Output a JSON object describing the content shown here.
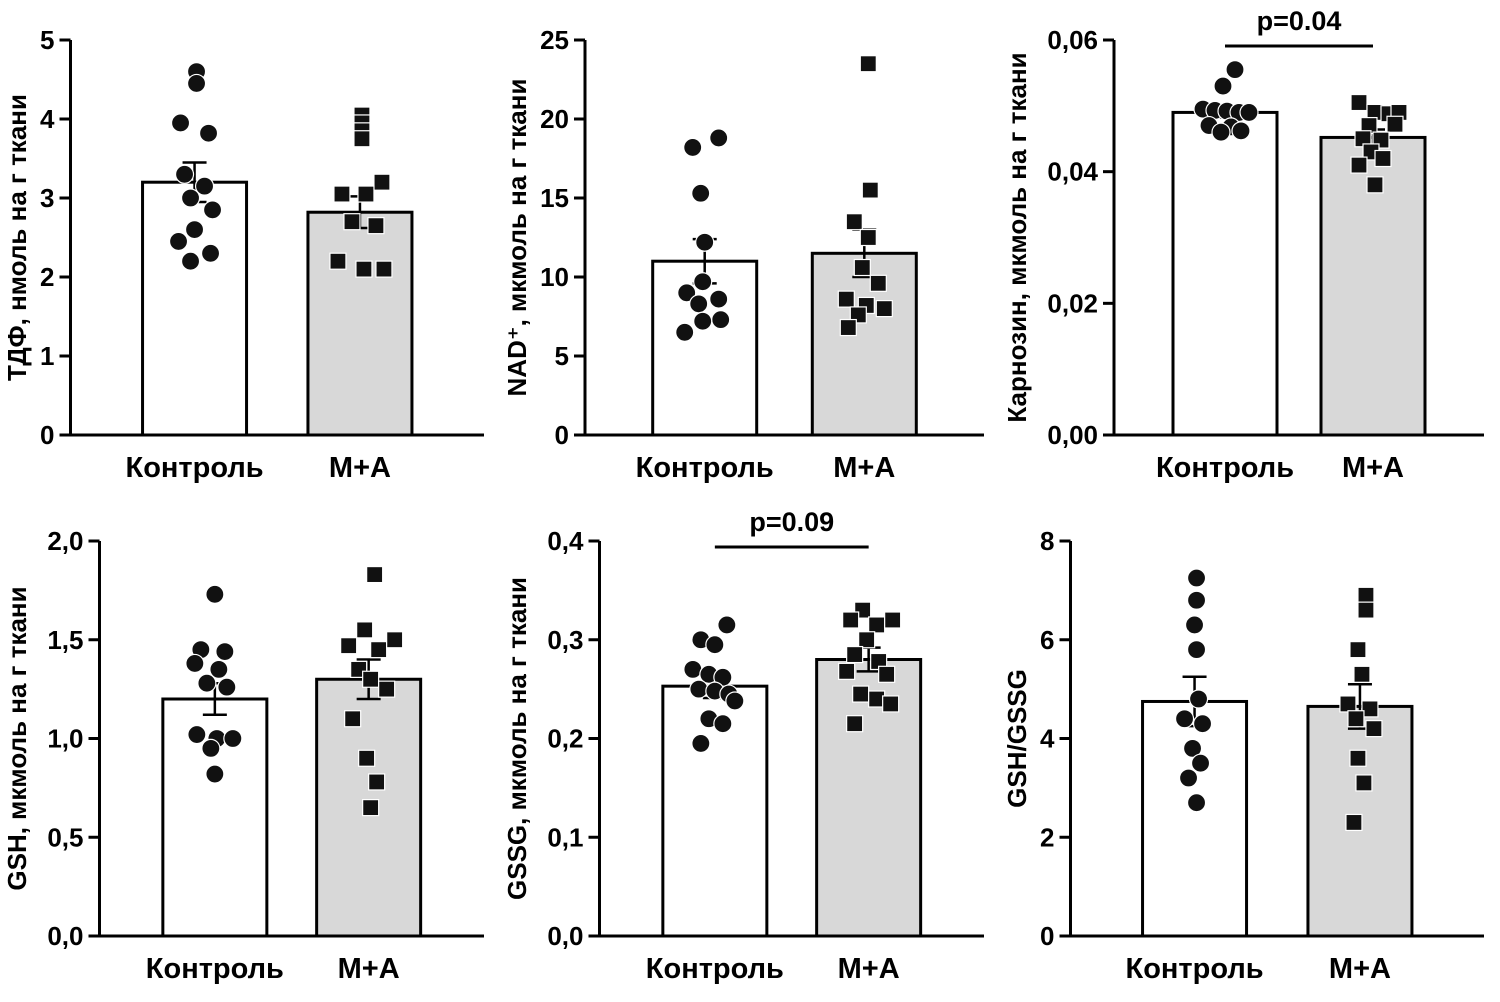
{
  "figure": {
    "background": "#ffffff",
    "axis_color": "#000000",
    "point_color": "#111111",
    "groups": [
      "Контроль",
      "М+А"
    ],
    "bar_colors": [
      "#ffffff",
      "#d8d8d8"
    ]
  },
  "chart_data": [
    {
      "type": "bar",
      "title": "",
      "xlabel": "",
      "ylabel": "ТДФ, нмоль на г ткани",
      "categories": [
        "Контроль",
        "М+А"
      ],
      "ylim": [
        0,
        5
      ],
      "yticks": [
        0,
        1,
        2,
        3,
        4,
        5
      ],
      "ytick_labels": [
        "0",
        "1",
        "2",
        "3",
        "4",
        "5"
      ],
      "annotation": null,
      "series": [
        {
          "name": "Контроль",
          "marker": "circle",
          "bar_color": "#ffffff",
          "mean": 3.2,
          "sem": 0.25,
          "points": [
            [
              2,
              4.6
            ],
            [
              2,
              4.45
            ],
            [
              -14,
              3.95
            ],
            [
              14,
              3.82
            ],
            [
              -10,
              3.3
            ],
            [
              10,
              3.15
            ],
            [
              -4,
              3.0
            ],
            [
              18,
              2.85
            ],
            [
              0,
              2.6
            ],
            [
              -16,
              2.45
            ],
            [
              16,
              2.3
            ],
            [
              -4,
              2.2
            ]
          ]
        },
        {
          "name": "М+А",
          "marker": "square",
          "bar_color": "#d8d8d8",
          "mean": 2.82,
          "sem": 0.2,
          "points": [
            [
              2,
              4.05
            ],
            [
              2,
              3.95
            ],
            [
              2,
              3.85
            ],
            [
              2,
              3.75
            ],
            [
              22,
              3.2
            ],
            [
              -18,
              3.05
            ],
            [
              6,
              3.05
            ],
            [
              -8,
              2.7
            ],
            [
              16,
              2.65
            ],
            [
              -22,
              2.2
            ],
            [
              4,
              2.1
            ],
            [
              24,
              2.1
            ]
          ]
        }
      ]
    },
    {
      "type": "bar",
      "title": "",
      "xlabel": "",
      "ylabel": "NAD⁺, мкмоль на г ткани",
      "categories": [
        "Контроль",
        "М+А"
      ],
      "ylim": [
        0,
        25
      ],
      "yticks": [
        0,
        5,
        10,
        15,
        20,
        25
      ],
      "ytick_labels": [
        "0",
        "5",
        "10",
        "15",
        "20",
        "25"
      ],
      "annotation": null,
      "series": [
        {
          "name": "Контроль",
          "marker": "circle",
          "bar_color": "#ffffff",
          "mean": 11.0,
          "sem": 1.4,
          "points": [
            [
              14,
              18.8
            ],
            [
              -12,
              18.2
            ],
            [
              -4,
              15.3
            ],
            [
              0,
              12.2
            ],
            [
              -2,
              9.7
            ],
            [
              -18,
              9.0
            ],
            [
              14,
              8.6
            ],
            [
              -6,
              8.3
            ],
            [
              16,
              7.3
            ],
            [
              -2,
              7.2
            ],
            [
              -20,
              6.5
            ]
          ]
        },
        {
          "name": "М+А",
          "marker": "square",
          "bar_color": "#d8d8d8",
          "mean": 11.5,
          "sem": 1.5,
          "points": [
            [
              4,
              23.5
            ],
            [
              6,
              15.5
            ],
            [
              -10,
              13.5
            ],
            [
              4,
              12.5
            ],
            [
              -2,
              10.6
            ],
            [
              14,
              9.6
            ],
            [
              -18,
              8.6
            ],
            [
              2,
              8.2
            ],
            [
              20,
              8.0
            ],
            [
              -6,
              7.6
            ],
            [
              -16,
              6.8
            ]
          ]
        }
      ]
    },
    {
      "type": "bar",
      "title": "",
      "xlabel": "",
      "ylabel": "Карнозин, мкмоль на г ткани",
      "categories": [
        "Контроль",
        "М+А"
      ],
      "ylim": [
        0,
        0.06
      ],
      "yticks": [
        0,
        0.02,
        0.04,
        0.06
      ],
      "ytick_labels": [
        "0,00",
        "0,02",
        "0,04",
        "0,06"
      ],
      "annotation": {
        "text": "p=0.04"
      },
      "series": [
        {
          "name": "Контроль",
          "marker": "circle",
          "bar_color": "#ffffff",
          "mean": 0.049,
          "sem": 0.0008,
          "points": [
            [
              10,
              0.0555
            ],
            [
              -2,
              0.053
            ],
            [
              -22,
              0.0495
            ],
            [
              -10,
              0.0493
            ],
            [
              2,
              0.0492
            ],
            [
              14,
              0.049
            ],
            [
              24,
              0.049
            ],
            [
              -16,
              0.047
            ],
            [
              6,
              0.0468
            ],
            [
              -4,
              0.046
            ],
            [
              16,
              0.0462
            ]
          ]
        },
        {
          "name": "М+А",
          "marker": "square",
          "bar_color": "#d8d8d8",
          "mean": 0.0452,
          "sem": 0.0012,
          "points": [
            [
              -14,
              0.0505
            ],
            [
              2,
              0.049
            ],
            [
              16,
              0.0488
            ],
            [
              26,
              0.049
            ],
            [
              -4,
              0.047
            ],
            [
              22,
              0.0472
            ],
            [
              -10,
              0.045
            ],
            [
              8,
              0.0448
            ],
            [
              -2,
              0.043
            ],
            [
              10,
              0.042
            ],
            [
              -14,
              0.041
            ],
            [
              2,
              0.038
            ]
          ]
        }
      ]
    },
    {
      "type": "bar",
      "title": "",
      "xlabel": "",
      "ylabel": "GSH, мкмоль на г ткани",
      "categories": [
        "Контроль",
        "М+А"
      ],
      "ylim": [
        0,
        2
      ],
      "yticks": [
        0,
        0.5,
        1.0,
        1.5,
        2.0
      ],
      "ytick_labels": [
        "0,0",
        "0,5",
        "1,0",
        "1,5",
        "2,0"
      ],
      "annotation": null,
      "series": [
        {
          "name": "Контроль",
          "marker": "circle",
          "bar_color": "#ffffff",
          "mean": 1.2,
          "sem": 0.08,
          "points": [
            [
              0,
              1.73
            ],
            [
              -14,
              1.45
            ],
            [
              10,
              1.44
            ],
            [
              -20,
              1.38
            ],
            [
              4,
              1.35
            ],
            [
              -8,
              1.28
            ],
            [
              12,
              1.26
            ],
            [
              -18,
              1.02
            ],
            [
              2,
              1.0
            ],
            [
              18,
              1.0
            ],
            [
              -4,
              0.95
            ],
            [
              0,
              0.82
            ]
          ]
        },
        {
          "name": "М+А",
          "marker": "square",
          "bar_color": "#d8d8d8",
          "mean": 1.3,
          "sem": 0.1,
          "points": [
            [
              6,
              1.83
            ],
            [
              -4,
              1.55
            ],
            [
              -20,
              1.47
            ],
            [
              10,
              1.45
            ],
            [
              26,
              1.5
            ],
            [
              -10,
              1.35
            ],
            [
              2,
              1.3
            ],
            [
              18,
              1.25
            ],
            [
              -16,
              1.1
            ],
            [
              -2,
              0.9
            ],
            [
              8,
              0.78
            ],
            [
              2,
              0.65
            ]
          ]
        }
      ]
    },
    {
      "type": "bar",
      "title": "",
      "xlabel": "",
      "ylabel": "GSSG, мкмоль на г ткани",
      "categories": [
        "Контроль",
        "М+А"
      ],
      "ylim": [
        0,
        0.4
      ],
      "yticks": [
        0,
        0.1,
        0.2,
        0.3,
        0.4
      ],
      "ytick_labels": [
        "0,0",
        "0,1",
        "0,2",
        "0,3",
        "0,4"
      ],
      "annotation": {
        "text": "p=0.09"
      },
      "series": [
        {
          "name": "Контроль",
          "marker": "circle",
          "bar_color": "#ffffff",
          "mean": 0.253,
          "sem": 0.012,
          "points": [
            [
              12,
              0.315
            ],
            [
              -14,
              0.3
            ],
            [
              0,
              0.295
            ],
            [
              -22,
              0.27
            ],
            [
              -6,
              0.265
            ],
            [
              8,
              0.262
            ],
            [
              -16,
              0.25
            ],
            [
              0,
              0.248
            ],
            [
              14,
              0.245
            ],
            [
              20,
              0.238
            ],
            [
              -6,
              0.22
            ],
            [
              8,
              0.215
            ],
            [
              -14,
              0.195
            ]
          ]
        },
        {
          "name": "М+А",
          "marker": "square",
          "bar_color": "#d8d8d8",
          "mean": 0.28,
          "sem": 0.012,
          "points": [
            [
              -6,
              0.33
            ],
            [
              -18,
              0.32
            ],
            [
              8,
              0.315
            ],
            [
              24,
              0.32
            ],
            [
              -2,
              0.3
            ],
            [
              -14,
              0.285
            ],
            [
              10,
              0.278
            ],
            [
              -22,
              0.268
            ],
            [
              18,
              0.265
            ],
            [
              -8,
              0.245
            ],
            [
              8,
              0.24
            ],
            [
              22,
              0.235
            ],
            [
              -14,
              0.215
            ]
          ]
        }
      ]
    },
    {
      "type": "bar",
      "title": "",
      "xlabel": "",
      "ylabel": "GSH/GSSG",
      "categories": [
        "Контроль",
        "М+А"
      ],
      "ylim": [
        0,
        8
      ],
      "yticks": [
        0,
        2,
        4,
        6,
        8
      ],
      "ytick_labels": [
        "0",
        "2",
        "4",
        "6",
        "8"
      ],
      "annotation": null,
      "series": [
        {
          "name": "Контроль",
          "marker": "circle",
          "bar_color": "#ffffff",
          "mean": 4.75,
          "sem": 0.5,
          "points": [
            [
              2,
              7.25
            ],
            [
              2,
              6.8
            ],
            [
              0,
              6.3
            ],
            [
              2,
              5.8
            ],
            [
              4,
              4.8
            ],
            [
              -10,
              4.4
            ],
            [
              8,
              4.3
            ],
            [
              -2,
              3.8
            ],
            [
              6,
              3.5
            ],
            [
              -6,
              3.2
            ],
            [
              2,
              2.7
            ]
          ]
        },
        {
          "name": "М+А",
          "marker": "square",
          "bar_color": "#d8d8d8",
          "mean": 4.65,
          "sem": 0.45,
          "points": [
            [
              6,
              6.9
            ],
            [
              6,
              6.6
            ],
            [
              -2,
              5.8
            ],
            [
              2,
              5.3
            ],
            [
              -12,
              4.7
            ],
            [
              10,
              4.6
            ],
            [
              -4,
              4.4
            ],
            [
              14,
              4.2
            ],
            [
              -2,
              3.6
            ],
            [
              4,
              3.1
            ],
            [
              -6,
              2.3
            ]
          ]
        }
      ]
    }
  ]
}
